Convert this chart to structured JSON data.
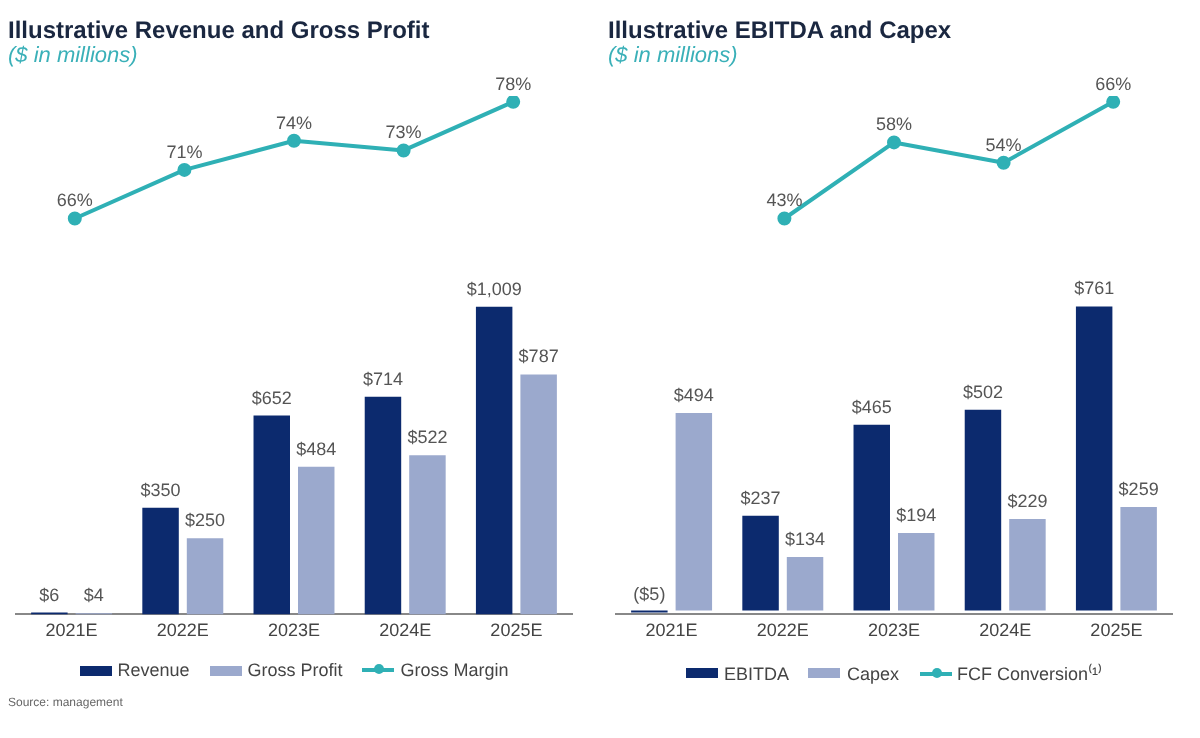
{
  "chart_data": [
    {
      "type": "line",
      "title": "Illustrative Revenue and Gross Profit",
      "subtitle": "($ in millions)",
      "categories": [
        null,
        null,
        null,
        null,
        null
      ],
      "series": [
        {
          "name": "Gross Margin",
          "color": "#2fb0b5",
          "values": [
            66,
            71,
            74,
            73,
            78
          ],
          "value_labels": [
            "66%",
            "71%",
            "74%",
            "73%",
            "78%"
          ]
        }
      ],
      "tick_labels": false,
      "marker": "circle"
    },
    {
      "type": "bar",
      "categories": [
        "2021E",
        "2022E",
        "2023E",
        "2024E",
        "2025E"
      ],
      "series": [
        {
          "name": "Revenue",
          "color": "#0c2a6e",
          "values": [
            6,
            350,
            652,
            714,
            1009
          ],
          "value_labels": [
            "$6",
            "$350",
            "$652",
            "$714",
            "$1,009"
          ]
        },
        {
          "name": "Gross Profit",
          "color": "#9ba9cd",
          "values": [
            4,
            250,
            484,
            522,
            787
          ],
          "value_labels": [
            "$4",
            "$250",
            "$484",
            "$522",
            "$787"
          ]
        }
      ],
      "tick_labels": "x",
      "legend": "bottom",
      "annotations": [
        "Source: management"
      ]
    },
    {
      "type": "line",
      "title": "Illustrative EBITDA and Capex",
      "subtitle": "($ in millions)",
      "categories": [
        null,
        null,
        null,
        null,
        null
      ],
      "series": [
        {
          "name": "FCF Conversion⁽¹⁾",
          "color": "#2fb0b5",
          "values": [
            null,
            43,
            58,
            54,
            66
          ],
          "value_labels": [
            null,
            "43%",
            "58%",
            "54%",
            "66%"
          ]
        }
      ],
      "tick_labels": false,
      "marker": "circle"
    },
    {
      "type": "bar",
      "categories": [
        "2021E",
        "2022E",
        "2023E",
        "2024E",
        "2025E"
      ],
      "series": [
        {
          "name": "EBITDA",
          "color": "#0c2a6e",
          "values": [
            -5,
            237,
            465,
            502,
            761
          ],
          "value_labels": [
            "($5)",
            "$237",
            "$465",
            "$502",
            "$761"
          ]
        },
        {
          "name": "Capex",
          "color": "#9ba9cd",
          "values": [
            494,
            134,
            194,
            229,
            259
          ],
          "value_labels": [
            "$494",
            "$134",
            "$194",
            "$229",
            "$259"
          ]
        }
      ],
      "tick_labels": "x",
      "legend": "bottom"
    }
  ]
}
